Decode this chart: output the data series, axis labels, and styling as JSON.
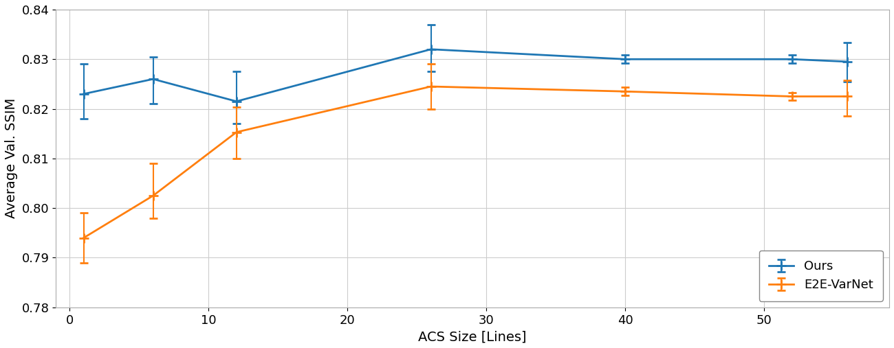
{
  "ours_x": [
    1,
    6,
    12,
    26,
    40,
    52,
    56
  ],
  "ours_y": [
    0.823,
    0.826,
    0.8215,
    0.832,
    0.83,
    0.83,
    0.8295
  ],
  "ours_yerr_lo": [
    0.005,
    0.005,
    0.0045,
    0.0045,
    0.0008,
    0.0008,
    0.004
  ],
  "ours_yerr_hi": [
    0.006,
    0.0045,
    0.006,
    0.005,
    0.0008,
    0.0008,
    0.0038
  ],
  "e2e_x": [
    1,
    6,
    12,
    26,
    40,
    52,
    56
  ],
  "e2e_y": [
    0.794,
    0.8025,
    0.8153,
    0.8245,
    0.8235,
    0.8225,
    0.8225
  ],
  "e2e_yerr_lo": [
    0.005,
    0.0045,
    0.0053,
    0.0045,
    0.0008,
    0.0008,
    0.004
  ],
  "e2e_yerr_hi": [
    0.005,
    0.0065,
    0.005,
    0.0045,
    0.0008,
    0.0008,
    0.0033
  ],
  "xlabel": "ACS Size [Lines]",
  "ylabel": "Average Val. SSIM",
  "ylim": [
    0.78,
    0.84
  ],
  "xlim": [
    -1,
    59
  ],
  "xticks": [
    0,
    10,
    20,
    30,
    40,
    50
  ],
  "yticks": [
    0.78,
    0.79,
    0.8,
    0.81,
    0.82,
    0.83,
    0.84
  ],
  "color_ours": "#1f77b4",
  "color_e2e": "#ff7f0e",
  "legend_labels": [
    "Ours",
    "E2E-VarNet"
  ],
  "figsize": [
    13.0,
    5.07
  ],
  "dpi": 100,
  "linewidth": 2.0,
  "marker": "+",
  "markersize": 10,
  "markeredgewidth": 2.0,
  "capsize": 4,
  "elinewidth": 1.5,
  "grid_color": "#cccccc",
  "grid_linewidth": 0.8
}
